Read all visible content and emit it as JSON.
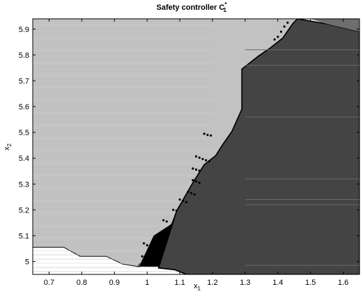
{
  "chart_data": {
    "type": "area",
    "title": "Safety controller C",
    "title_super": "*",
    "title_sub": "1",
    "xlabel_main": "x",
    "xlabel_sub": "1",
    "ylabel_main": "x",
    "ylabel_sub": "2",
    "xlim": [
      0.65,
      1.65
    ],
    "ylim": [
      4.95,
      5.94
    ],
    "xticks": [
      0.7,
      0.8,
      0.9,
      1,
      1.1,
      1.2,
      1.3,
      1.4,
      1.5,
      1.6
    ],
    "xtick_labels": [
      "0.7",
      "0.8",
      "0.9",
      "1",
      "1.1",
      "1.2",
      "1.3",
      "1.4",
      "1.5",
      "1.6"
    ],
    "yticks": [
      5,
      5.1,
      5.2,
      5.3,
      5.4,
      5.5,
      5.6,
      5.7,
      5.8,
      5.9
    ],
    "ytick_labels": [
      "5",
      "5.1",
      "5.2",
      "5.3",
      "5.4",
      "5.5",
      "5.6",
      "5.7",
      "5.8",
      "5.9"
    ],
    "grid": false,
    "colors": {
      "light_region": "#c2c2c2",
      "dark_region": "#444444",
      "mid_region": "#6e6e6e",
      "boundary": "#000000",
      "background": "#ffffff"
    },
    "regions": [
      {
        "shade": "light",
        "polygon": [
          [
            0.65,
            5.055
          ],
          [
            0.745,
            5.055
          ],
          [
            0.795,
            5.02
          ],
          [
            0.875,
            5.02
          ],
          [
            0.925,
            4.99
          ],
          [
            0.975,
            4.98
          ],
          [
            0.975,
            4.99
          ],
          [
            1.035,
            5.015
          ],
          [
            1.09,
            5.195
          ],
          [
            1.14,
            5.305
          ],
          [
            1.175,
            5.375
          ],
          [
            1.21,
            5.41
          ],
          [
            1.23,
            5.45
          ],
          [
            1.26,
            5.505
          ],
          [
            1.29,
            5.59
          ],
          [
            1.29,
            5.745
          ],
          [
            1.34,
            5.795
          ],
          [
            1.375,
            5.825
          ],
          [
            1.415,
            5.865
          ],
          [
            1.445,
            5.92
          ],
          [
            1.46,
            5.94
          ],
          [
            0.65,
            5.94
          ]
        ]
      },
      {
        "shade": "dark",
        "polygon": [
          [
            1.035,
            4.975
          ],
          [
            1.09,
            5.195
          ],
          [
            1.14,
            5.305
          ],
          [
            1.175,
            5.375
          ],
          [
            1.21,
            5.41
          ],
          [
            1.23,
            5.45
          ],
          [
            1.26,
            5.505
          ],
          [
            1.29,
            5.59
          ],
          [
            1.29,
            5.745
          ],
          [
            1.34,
            5.795
          ],
          [
            1.375,
            5.825
          ],
          [
            1.415,
            5.865
          ],
          [
            1.445,
            5.92
          ],
          [
            1.46,
            5.94
          ],
          [
            1.55,
            5.92
          ],
          [
            1.65,
            5.89
          ],
          [
            1.65,
            4.95
          ],
          [
            1.12,
            4.95
          ],
          [
            1.085,
            4.968
          ]
        ]
      },
      {
        "shade": "mid",
        "polygon": [
          [
            1.445,
            5.92
          ],
          [
            1.46,
            5.94
          ],
          [
            1.5,
            5.94
          ],
          [
            1.55,
            5.92
          ],
          [
            1.65,
            5.89
          ],
          [
            1.65,
            5.94
          ],
          [
            1.46,
            5.94
          ]
        ]
      }
    ],
    "boundary_band": [
      [
        0.975,
        4.98
      ],
      [
        1.035,
        4.98
      ],
      [
        1.06,
        5.07
      ],
      [
        1.08,
        5.15
      ],
      [
        1.02,
        5.1
      ],
      [
        0.99,
        5.02
      ]
    ],
    "scattered_points": [
      [
        1.175,
        5.495
      ],
      [
        1.185,
        5.49
      ],
      [
        1.195,
        5.488
      ],
      [
        1.15,
        5.407
      ],
      [
        1.16,
        5.402
      ],
      [
        1.17,
        5.397
      ],
      [
        1.18,
        5.392
      ],
      [
        1.19,
        5.388
      ],
      [
        1.14,
        5.36
      ],
      [
        1.15,
        5.356
      ],
      [
        1.16,
        5.352
      ],
      [
        1.14,
        5.315
      ],
      [
        1.15,
        5.31
      ],
      [
        1.16,
        5.305
      ],
      [
        1.125,
        5.27
      ],
      [
        1.135,
        5.265
      ],
      [
        1.145,
        5.26
      ],
      [
        1.1,
        5.24
      ],
      [
        1.11,
        5.235
      ],
      [
        1.12,
        5.23
      ],
      [
        1.08,
        5.2
      ],
      [
        1.09,
        5.197
      ],
      [
        1.05,
        5.16
      ],
      [
        1.06,
        5.155
      ],
      [
        0.99,
        5.07
      ],
      [
        1.0,
        5.063
      ],
      [
        1.01,
        5.058
      ],
      [
        0.985,
        5.02
      ],
      [
        0.995,
        5.015
      ],
      [
        1.39,
        5.86
      ],
      [
        1.4,
        5.87
      ],
      [
        1.41,
        5.89
      ],
      [
        1.42,
        5.91
      ],
      [
        1.43,
        5.925
      ]
    ]
  }
}
